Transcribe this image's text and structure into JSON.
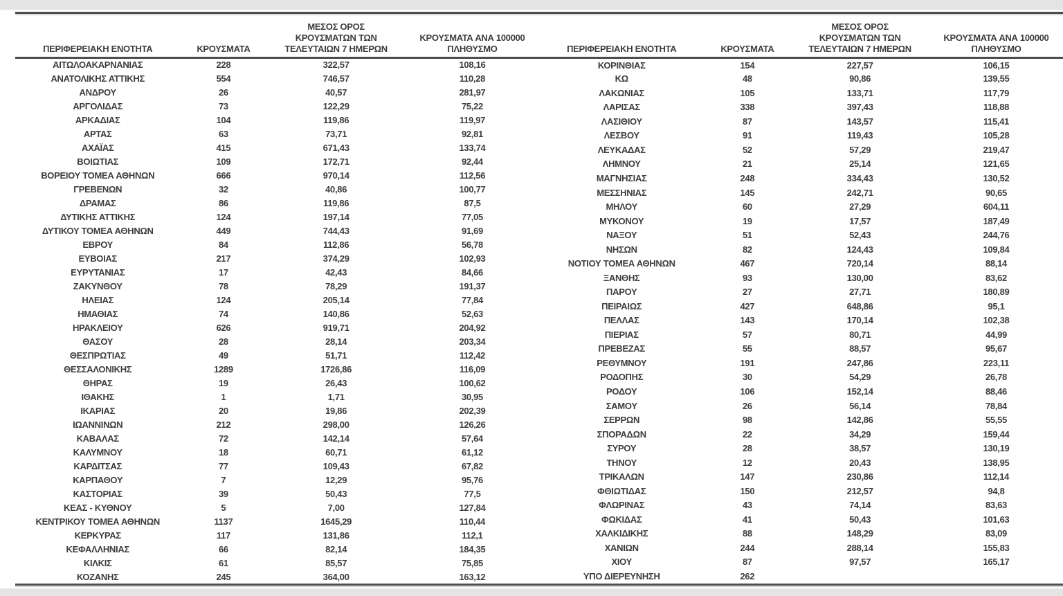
{
  "document": {
    "type": "regional-covid-cases-table",
    "text_color": "#3d3d3d",
    "rule_color": "#4d4d4d",
    "edge_color": "#e4e4e4"
  },
  "headers": {
    "region": "ΠΕΡΙΦΕΡΕΙΑΚΗ ΕΝΟΤΗΤΑ",
    "cases": "ΚΡΟΥΣΜΑΤΑ",
    "avg_line1": "ΜΕΣΟΣ ΟΡΟΣ",
    "avg_line2": "ΚΡΟΥΣΜΑΤΩΝ ΤΩΝ",
    "avg_line3": "ΤΕΛΕΥΤΑΙΩΝ 7 ΗΜΕΡΩΝ",
    "per100k_line1": "ΚΡΟΥΣΜΑΤΑ ΑΝΑ 100000",
    "per100k_line2": "ΠΛΗΘΥΣΜΟ"
  },
  "table": {
    "left_rows": [
      [
        "ΑΙΤΩΛΟΑΚΑΡΝΑΝΙΑΣ",
        "228",
        "322,57",
        "108,16"
      ],
      [
        "ΑΝΑΤΟΛΙΚΗΣ ΑΤΤΙΚΗΣ",
        "554",
        "746,57",
        "110,28"
      ],
      [
        "ΑΝΔΡΟΥ",
        "26",
        "40,57",
        "281,97"
      ],
      [
        "ΑΡΓΟΛΙΔΑΣ",
        "73",
        "122,29",
        "75,22"
      ],
      [
        "ΑΡΚΑΔΙΑΣ",
        "104",
        "119,86",
        "119,97"
      ],
      [
        "ΑΡΤΑΣ",
        "63",
        "73,71",
        "92,81"
      ],
      [
        "ΑΧΑΪΑΣ",
        "415",
        "671,43",
        "133,74"
      ],
      [
        "ΒΟΙΩΤΙΑΣ",
        "109",
        "172,71",
        "92,44"
      ],
      [
        "ΒΟΡΕΙΟΥ ΤΟΜΕΑ ΑΘΗΝΩΝ",
        "666",
        "970,14",
        "112,56"
      ],
      [
        "ΓΡΕΒΕΝΩΝ",
        "32",
        "40,86",
        "100,77"
      ],
      [
        "ΔΡΑΜΑΣ",
        "86",
        "119,86",
        "87,5"
      ],
      [
        "ΔΥΤΙΚΗΣ ΑΤΤΙΚΗΣ",
        "124",
        "197,14",
        "77,05"
      ],
      [
        "ΔΥΤΙΚΟΥ ΤΟΜΕΑ ΑΘΗΝΩΝ",
        "449",
        "744,43",
        "91,69"
      ],
      [
        "ΕΒΡΟΥ",
        "84",
        "112,86",
        "56,78"
      ],
      [
        "ΕΥΒΟΙΑΣ",
        "217",
        "374,29",
        "102,93"
      ],
      [
        "ΕΥΡΥΤΑΝΙΑΣ",
        "17",
        "42,43",
        "84,66"
      ],
      [
        "ΖΑΚΥΝΘΟΥ",
        "78",
        "78,29",
        "191,37"
      ],
      [
        "ΗΛΕΙΑΣ",
        "124",
        "205,14",
        "77,84"
      ],
      [
        "ΗΜΑΘΙΑΣ",
        "74",
        "140,86",
        "52,63"
      ],
      [
        "ΗΡΑΚΛΕΙΟΥ",
        "626",
        "919,71",
        "204,92"
      ],
      [
        "ΘΑΣΟΥ",
        "28",
        "28,14",
        "203,34"
      ],
      [
        "ΘΕΣΠΡΩΤΙΑΣ",
        "49",
        "51,71",
        "112,42"
      ],
      [
        "ΘΕΣΣΑΛΟΝΙΚΗΣ",
        "1289",
        "1726,86",
        "116,09"
      ],
      [
        "ΘΗΡΑΣ",
        "19",
        "26,43",
        "100,62"
      ],
      [
        "ΙΘΑΚΗΣ",
        "1",
        "1,71",
        "30,95"
      ],
      [
        "ΙΚΑΡΙΑΣ",
        "20",
        "19,86",
        "202,39"
      ],
      [
        "ΙΩΑΝΝΙΝΩΝ",
        "212",
        "298,00",
        "126,26"
      ],
      [
        "ΚΑΒΑΛΑΣ",
        "72",
        "142,14",
        "57,64"
      ],
      [
        "ΚΑΛΥΜΝΟΥ",
        "18",
        "60,71",
        "61,12"
      ],
      [
        "ΚΑΡΔΙΤΣΑΣ",
        "77",
        "109,43",
        "67,82"
      ],
      [
        "ΚΑΡΠΑΘΟΥ",
        "7",
        "12,29",
        "95,76"
      ],
      [
        "ΚΑΣΤΟΡΙΑΣ",
        "39",
        "50,43",
        "77,5"
      ],
      [
        "ΚΕΑΣ - ΚΥΘΝΟΥ",
        "5",
        "7,00",
        "127,84"
      ],
      [
        "ΚΕΝΤΡΙΚΟΥ ΤΟΜΕΑ ΑΘΗΝΩΝ",
        "1137",
        "1645,29",
        "110,44"
      ],
      [
        "ΚΕΡΚΥΡΑΣ",
        "117",
        "131,86",
        "112,1"
      ],
      [
        "ΚΕΦΑΛΛΗΝΙΑΣ",
        "66",
        "82,14",
        "184,35"
      ],
      [
        "ΚΙΛΚΙΣ",
        "61",
        "85,57",
        "75,85"
      ],
      [
        "ΚΟΖΑΝΗΣ",
        "245",
        "364,00",
        "163,12"
      ]
    ],
    "right_rows": [
      [
        "ΚΟΡΙΝΘΙΑΣ",
        "154",
        "227,57",
        "106,15"
      ],
      [
        "ΚΩ",
        "48",
        "90,86",
        "139,55"
      ],
      [
        "ΛΑΚΩΝΙΑΣ",
        "105",
        "133,71",
        "117,79"
      ],
      [
        "ΛΑΡΙΣΑΣ",
        "338",
        "397,43",
        "118,88"
      ],
      [
        "ΛΑΣΙΘΙΟΥ",
        "87",
        "143,57",
        "115,41"
      ],
      [
        "ΛΕΣΒΟΥ",
        "91",
        "119,43",
        "105,28"
      ],
      [
        "ΛΕΥΚΑΔΑΣ",
        "52",
        "57,29",
        "219,47"
      ],
      [
        "ΛΗΜΝΟΥ",
        "21",
        "25,14",
        "121,65"
      ],
      [
        "ΜΑΓΝΗΣΙΑΣ",
        "248",
        "334,43",
        "130,52"
      ],
      [
        "ΜΕΣΣΗΝΙΑΣ",
        "145",
        "242,71",
        "90,65"
      ],
      [
        "ΜΗΛΟΥ",
        "60",
        "27,29",
        "604,11"
      ],
      [
        "ΜΥΚΟΝΟΥ",
        "19",
        "17,57",
        "187,49"
      ],
      [
        "ΝΑΞΟΥ",
        "51",
        "52,43",
        "244,76"
      ],
      [
        "ΝΗΣΩΝ",
        "82",
        "124,43",
        "109,84"
      ],
      [
        "ΝΟΤΙΟΥ ΤΟΜΕΑ ΑΘΗΝΩΝ",
        "467",
        "720,14",
        "88,14"
      ],
      [
        "ΞΑΝΘΗΣ",
        "93",
        "130,00",
        "83,62"
      ],
      [
        "ΠΑΡΟΥ",
        "27",
        "27,71",
        "180,89"
      ],
      [
        "ΠΕΙΡΑΙΩΣ",
        "427",
        "648,86",
        "95,1"
      ],
      [
        "ΠΕΛΛΑΣ",
        "143",
        "170,14",
        "102,38"
      ],
      [
        "ΠΙΕΡΙΑΣ",
        "57",
        "80,71",
        "44,99"
      ],
      [
        "ΠΡΕΒΕΖΑΣ",
        "55",
        "88,57",
        "95,67"
      ],
      [
        "ΡΕΘΥΜΝΟΥ",
        "191",
        "247,86",
        "223,11"
      ],
      [
        "ΡΟΔΟΠΗΣ",
        "30",
        "54,29",
        "26,78"
      ],
      [
        "ΡΟΔΟΥ",
        "106",
        "152,14",
        "88,46"
      ],
      [
        "ΣΑΜΟΥ",
        "26",
        "56,14",
        "78,84"
      ],
      [
        "ΣΕΡΡΩΝ",
        "98",
        "142,86",
        "55,55"
      ],
      [
        "ΣΠΟΡΑΔΩΝ",
        "22",
        "34,29",
        "159,44"
      ],
      [
        "ΣΥΡΟΥ",
        "28",
        "38,57",
        "130,19"
      ],
      [
        "ΤΗΝΟΥ",
        "12",
        "20,43",
        "138,95"
      ],
      [
        "ΤΡΙΚΑΛΩΝ",
        "147",
        "230,86",
        "112,14"
      ],
      [
        "ΦΘΙΩΤΙΔΑΣ",
        "150",
        "212,57",
        "94,8"
      ],
      [
        "ΦΛΩΡΙΝΑΣ",
        "43",
        "74,14",
        "83,63"
      ],
      [
        "ΦΩΚΙΔΑΣ",
        "41",
        "50,43",
        "101,63"
      ],
      [
        "ΧΑΛΚΙΔΙΚΗΣ",
        "88",
        "148,29",
        "83,09"
      ],
      [
        "ΧΑΝΙΩΝ",
        "244",
        "288,14",
        "155,83"
      ],
      [
        "ΧΙΟΥ",
        "87",
        "97,57",
        "165,17"
      ],
      [
        "ΥΠΟ ΔΙΕΡΕΥΝΗΣΗ",
        "262",
        "",
        ""
      ]
    ]
  }
}
